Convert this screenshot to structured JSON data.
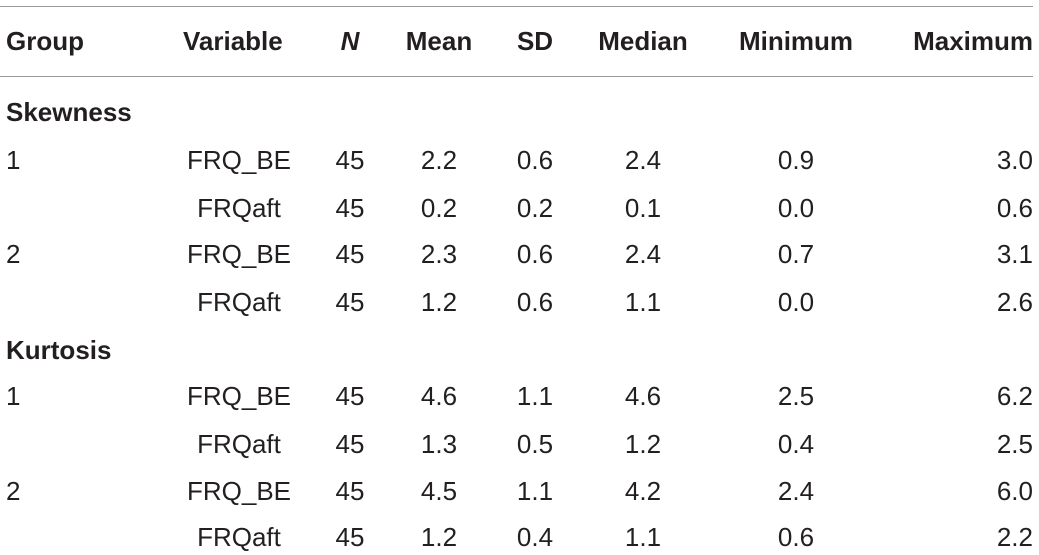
{
  "headers": {
    "group": "Group",
    "variable": "Variable",
    "n": "N",
    "mean": "Mean",
    "sd": "SD",
    "median": "Median",
    "minimum": "Minimum",
    "maximum": "Maximum"
  },
  "sections": [
    {
      "title": "Skewness",
      "rows": [
        {
          "group": "1",
          "variable": "FRQ_BE",
          "n": "45",
          "mean": "2.2",
          "sd": "0.6",
          "median": "2.4",
          "minimum": "0.9",
          "maximum": "3.0"
        },
        {
          "group": "",
          "variable": "FRQaft",
          "n": "45",
          "mean": "0.2",
          "sd": "0.2",
          "median": "0.1",
          "minimum": "0.0",
          "maximum": "0.6"
        },
        {
          "group": "2",
          "variable": "FRQ_BE",
          "n": "45",
          "mean": "2.3",
          "sd": "0.6",
          "median": "2.4",
          "minimum": "0.7",
          "maximum": "3.1"
        },
        {
          "group": "",
          "variable": "FRQaft",
          "n": "45",
          "mean": "1.2",
          "sd": "0.6",
          "median": "1.1",
          "minimum": "0.0",
          "maximum": "2.6"
        }
      ]
    },
    {
      "title": "Kurtosis",
      "rows": [
        {
          "group": "1",
          "variable": "FRQ_BE",
          "n": "45",
          "mean": "4.6",
          "sd": "1.1",
          "median": "4.6",
          "minimum": "2.5",
          "maximum": "6.2"
        },
        {
          "group": "",
          "variable": "FRQaft",
          "n": "45",
          "mean": "1.3",
          "sd": "0.5",
          "median": "1.2",
          "minimum": "0.4",
          "maximum": "2.5"
        },
        {
          "group": "2",
          "variable": "FRQ_BE",
          "n": "45",
          "mean": "4.5",
          "sd": "1.1",
          "median": "4.2",
          "minimum": "2.4",
          "maximum": "6.0"
        },
        {
          "group": "",
          "variable": "FRQaft",
          "n": "45",
          "mean": "1.2",
          "sd": "0.4",
          "median": "1.1",
          "minimum": "0.6",
          "maximum": "2.2"
        }
      ]
    }
  ]
}
